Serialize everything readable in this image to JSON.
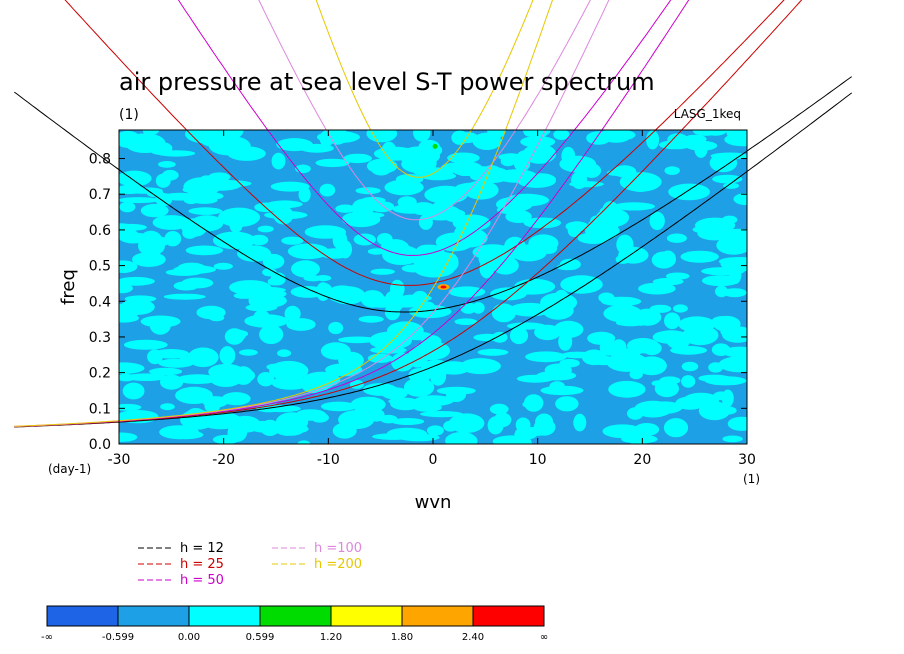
{
  "chart_data": {
    "type": "contour",
    "title": "air pressure at sea level S-T power spectrum",
    "subtitle": "(1)",
    "model_label": "LASG_1keq",
    "xlabel": "wvn",
    "ylabel": "freq",
    "x_unit": "(1)",
    "y_unit": "(day-1)",
    "xlim": [
      -30,
      30
    ],
    "ylim": [
      0,
      0.88
    ],
    "xticks": [
      -30,
      -20,
      -10,
      0,
      10,
      20,
      30
    ],
    "yticks": [
      0.0,
      0.1,
      0.2,
      0.3,
      0.4,
      0.5,
      0.6,
      0.7,
      0.8
    ],
    "x_tick_labels": [
      "-30",
      "-20",
      "-10",
      "0",
      "10",
      "20",
      "30"
    ],
    "y_tick_labels": [
      "0.0",
      "0.1",
      "0.2",
      "0.3",
      "0.4",
      "0.5",
      "0.6",
      "0.7",
      "0.8"
    ],
    "dispersion_curves": [
      {
        "name": "h = 12",
        "label": "h = 12",
        "color": "#000000",
        "equivalent_depth": 12
      },
      {
        "name": "h = 25",
        "label": "h = 25",
        "color": "#cc0000",
        "equivalent_depth": 25
      },
      {
        "name": "h = 50",
        "label": "h = 50",
        "color": "#cc00cc",
        "equivalent_depth": 50
      },
      {
        "name": "h =100",
        "label": "h =100",
        "color": "#dd88dd",
        "equivalent_depth": 100
      },
      {
        "name": "h =200",
        "label": "h =200",
        "color": "#e6c800",
        "equivalent_depth": 200
      }
    ],
    "colorbar": {
      "levels": [
        "-∞",
        "-0.599",
        "0.00",
        "0.599",
        "1.20",
        "1.80",
        "2.40",
        "∞"
      ],
      "colors": [
        "#1e64e6",
        "#1ea0e6",
        "#00ffff",
        "#00dc00",
        "#ffff00",
        "#ffa500",
        "#ff0000"
      ]
    },
    "field_colors": {
      "low": "#1ea0e6",
      "mid": "#00ffff"
    }
  }
}
